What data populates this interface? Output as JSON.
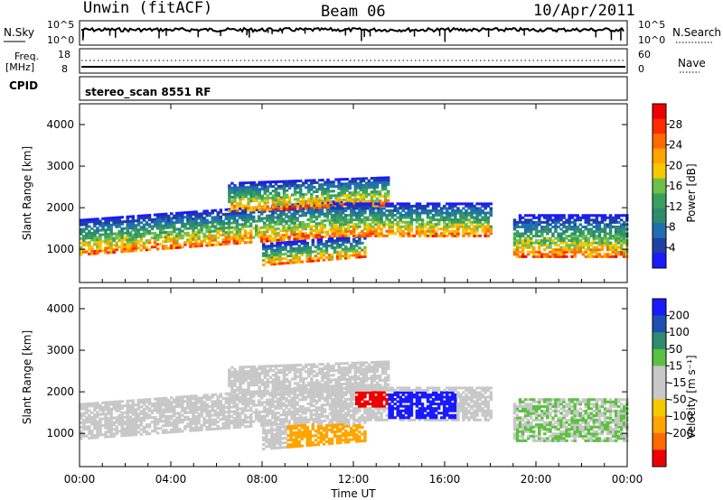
{
  "header": {
    "site": "Unwin (fitACF)",
    "beam": "Beam 06",
    "date": "10/Apr/2011"
  },
  "noise_panel": {
    "left_label": "N.Sky",
    "left_ticks": [
      "10^5",
      "10^0"
    ],
    "right_ticks": [
      "10^5",
      "10^0"
    ],
    "right_label": "N.Search"
  },
  "freq_panel": {
    "left_label_1": "Freq.",
    "left_label_2": "[MHz]",
    "left_ticks": [
      "18",
      "8"
    ],
    "right_ticks": [
      "60",
      "0"
    ],
    "right_label": "Nave"
  },
  "cpid_panel": {
    "label": "CPID",
    "program": "stereo_scan 8551 RF"
  },
  "x_axis": {
    "ticks": [
      "00:00",
      "04:00",
      "08:00",
      "12:00",
      "16:00",
      "20:00",
      "00:00"
    ],
    "label": "Time UT"
  },
  "colors": {
    "power": [
      "#1a1aff",
      "#1f3fa8",
      "#1f6fb0",
      "#2e8b6e",
      "#3aa060",
      "#6cc04a",
      "#f5c800",
      "#ffa500",
      "#ff6a00",
      "#ff2a00",
      "#ee0000"
    ],
    "velocity": [
      "#1a1aff",
      "#1f4fb0",
      "#2e8b6e",
      "#5cc040",
      "#c8c8c8",
      "#c8c8c8",
      "#f5c800",
      "#ffa500",
      "#ff6a00",
      "#ee0000"
    ]
  },
  "chart_data": [
    {
      "type": "heatmap",
      "name": "power",
      "ylabel": "Slant Range [km]",
      "ylim": [
        200,
        4500
      ],
      "y_ticks": [
        1000,
        2000,
        3000,
        4000
      ],
      "x_range_hours": [
        0,
        24
      ],
      "colorbar": {
        "label": "Power [dB]",
        "ticks": [
          "4",
          "8",
          "12",
          "16",
          "20",
          "24",
          "28"
        ],
        "range": [
          0,
          32
        ]
      }
    },
    {
      "type": "heatmap",
      "name": "velocity",
      "ylabel": "Slant Range [km]",
      "ylim": [
        200,
        4500
      ],
      "y_ticks": [
        1000,
        2000,
        3000,
        4000
      ],
      "x_range_hours": [
        0,
        24
      ],
      "colorbar": {
        "label": "Velocity [m s⁻¹]",
        "ticks": [
          "200",
          "100",
          "50",
          "15",
          "-15",
          "-50",
          "-100",
          "-200"
        ]
      }
    }
  ]
}
